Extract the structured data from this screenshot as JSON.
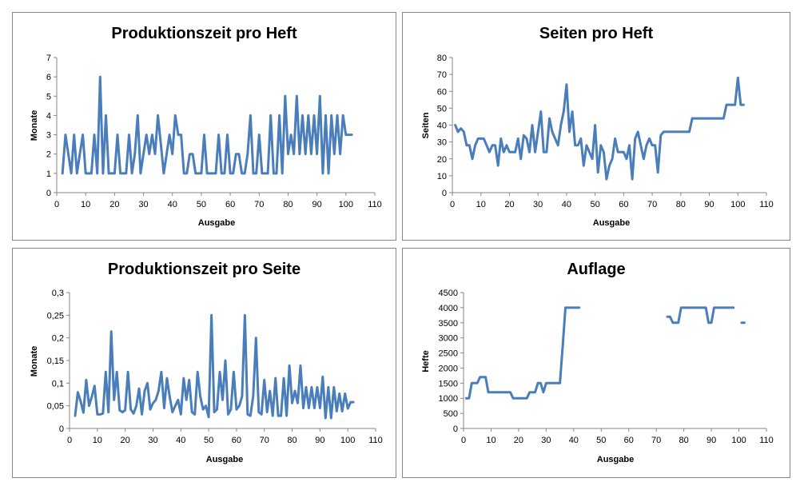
{
  "chart_data": [
    {
      "type": "line",
      "title": "Produktionszeit pro Heft",
      "xlabel": "Ausgabe",
      "ylabel": "Monate",
      "xlim": [
        0,
        110
      ],
      "ylim": [
        0,
        7
      ],
      "xticks": [
        "0",
        "10",
        "20",
        "30",
        "40",
        "50",
        "60",
        "70",
        "80",
        "90",
        "100",
        "110"
      ],
      "yticks": [
        "0",
        "1",
        "2",
        "3",
        "4",
        "5",
        "6",
        "7"
      ],
      "color": "#4a7ebb",
      "x_start": 2,
      "values": [
        1,
        3,
        2,
        1,
        3,
        1,
        2,
        3,
        1,
        1,
        1,
        3,
        1,
        6,
        1,
        4,
        1,
        1,
        1,
        3,
        1,
        1,
        1,
        3,
        1,
        2,
        4,
        1,
        2,
        3,
        2,
        3,
        2,
        4,
        2.5,
        1,
        2,
        3,
        2,
        4,
        3,
        3,
        1,
        1,
        2,
        2,
        1,
        1,
        1,
        3,
        1,
        1,
        1,
        1,
        3,
        1,
        1,
        3,
        1,
        1,
        2,
        2,
        1,
        1,
        2,
        4,
        1,
        1,
        3,
        1,
        1,
        1,
        4,
        1,
        1,
        4,
        1,
        5,
        2,
        3,
        2,
        5,
        2,
        4,
        2,
        4,
        2,
        4,
        2,
        5,
        1,
        4,
        1,
        4,
        2,
        4,
        2,
        4,
        3,
        3,
        3
      ]
    },
    {
      "type": "line",
      "title": "Seiten pro Heft",
      "xlabel": "Ausgabe",
      "ylabel": "Seiten",
      "xlim": [
        0,
        110
      ],
      "ylim": [
        0,
        80
      ],
      "xticks": [
        "0",
        "10",
        "20",
        "30",
        "40",
        "50",
        "60",
        "70",
        "80",
        "90",
        "100",
        "110"
      ],
      "yticks": [
        "0",
        "10",
        "20",
        "30",
        "40",
        "50",
        "60",
        "70",
        "80"
      ],
      "color": "#4a7ebb",
      "x_start": 1,
      "values": [
        40,
        36,
        38,
        36,
        28,
        28,
        20,
        28,
        32,
        32,
        32,
        28,
        24,
        28,
        28,
        16,
        32,
        24,
        28,
        24,
        24,
        24,
        32,
        20,
        34,
        32,
        24,
        40,
        24,
        36,
        48,
        24,
        24,
        44,
        36,
        32,
        28,
        40,
        48,
        64,
        36,
        48,
        28,
        28,
        32,
        16,
        28,
        24,
        20,
        40,
        12,
        28,
        24,
        8,
        16,
        20,
        32,
        24,
        24,
        24,
        20,
        28,
        8,
        32,
        36,
        28,
        20,
        28,
        32,
        28,
        28,
        12,
        34,
        36,
        36,
        36,
        36,
        36,
        36,
        36,
        36,
        36,
        36,
        44,
        44,
        44,
        44,
        44,
        44,
        44,
        44,
        44,
        44,
        44,
        44,
        52,
        52,
        52,
        52,
        68,
        52,
        52
      ]
    },
    {
      "type": "line",
      "title": "Produktionszeit pro Seite",
      "xlabel": "Ausgabe",
      "ylabel": "Monate",
      "xlim": [
        0,
        110
      ],
      "ylim": [
        0,
        0.3
      ],
      "xticks": [
        "0",
        "10",
        "20",
        "30",
        "40",
        "50",
        "60",
        "70",
        "80",
        "90",
        "100",
        "110"
      ],
      "yticks": [
        "0",
        "0,05",
        "0,1",
        "0,15",
        "0,2",
        "0,25",
        "0,3"
      ],
      "color": "#4a7ebb",
      "x_start": 2,
      "values": [
        0.028,
        0.08,
        0.06,
        0.035,
        0.107,
        0.05,
        0.07,
        0.094,
        0.031,
        0.031,
        0.033,
        0.125,
        0.036,
        0.214,
        0.063,
        0.125,
        0.04,
        0.036,
        0.04,
        0.125,
        0.042,
        0.033,
        0.05,
        0.088,
        0.031,
        0.083,
        0.1,
        0.042,
        0.056,
        0.063,
        0.083,
        0.125,
        0.045,
        0.111,
        0.07,
        0.036,
        0.05,
        0.063,
        0.031,
        0.111,
        0.063,
        0.107,
        0.036,
        0.031,
        0.125,
        0.071,
        0.042,
        0.05,
        0.025,
        0.25,
        0.036,
        0.042,
        0.125,
        0.063,
        0.15,
        0.031,
        0.042,
        0.125,
        0.042,
        0.05,
        0.071,
        0.25,
        0.031,
        0.028,
        0.071,
        0.2,
        0.036,
        0.031,
        0.107,
        0.036,
        0.083,
        0.028,
        0.111,
        0.028,
        0.028,
        0.111,
        0.028,
        0.139,
        0.056,
        0.083,
        0.056,
        0.139,
        0.045,
        0.091,
        0.045,
        0.091,
        0.045,
        0.091,
        0.045,
        0.114,
        0.023,
        0.091,
        0.023,
        0.091,
        0.038,
        0.077,
        0.038,
        0.077,
        0.044,
        0.058,
        0.058
      ]
    },
    {
      "type": "line",
      "title": "Auflage",
      "xlabel": "Ausgabe",
      "ylabel": "Hefte",
      "xlim": [
        0,
        110
      ],
      "ylim": [
        0,
        4500
      ],
      "xticks": [
        "0",
        "10",
        "20",
        "30",
        "40",
        "50",
        "60",
        "70",
        "80",
        "90",
        "100",
        "110"
      ],
      "yticks": [
        "0",
        "500",
        "1000",
        "1500",
        "2000",
        "2500",
        "3000",
        "3500",
        "4000",
        "4500"
      ],
      "color": "#4a7ebb",
      "x_start": 1,
      "values": [
        1000,
        1000,
        1500,
        1500,
        1500,
        1700,
        1700,
        1700,
        1200,
        1200,
        1200,
        1200,
        1200,
        1200,
        1200,
        1200,
        1200,
        1000,
        1000,
        1000,
        1000,
        1000,
        1000,
        1200,
        1200,
        1200,
        1500,
        1500,
        1200,
        1500,
        1500,
        1500,
        1500,
        1500,
        1500,
        2700,
        4000,
        4000,
        4000,
        4000,
        4000,
        4000,
        null,
        null,
        null,
        null,
        null,
        null,
        null,
        null,
        null,
        null,
        null,
        null,
        null,
        null,
        null,
        null,
        null,
        null,
        null,
        null,
        null,
        null,
        null,
        null,
        null,
        null,
        null,
        null,
        null,
        null,
        null,
        3700,
        3700,
        3500,
        3500,
        3500,
        4000,
        4000,
        4000,
        4000,
        4000,
        4000,
        4000,
        4000,
        4000,
        4000,
        3500,
        3500,
        4000,
        4000,
        4000,
        4000,
        4000,
        4000,
        4000,
        4000,
        null,
        null,
        3500,
        3500
      ]
    }
  ]
}
